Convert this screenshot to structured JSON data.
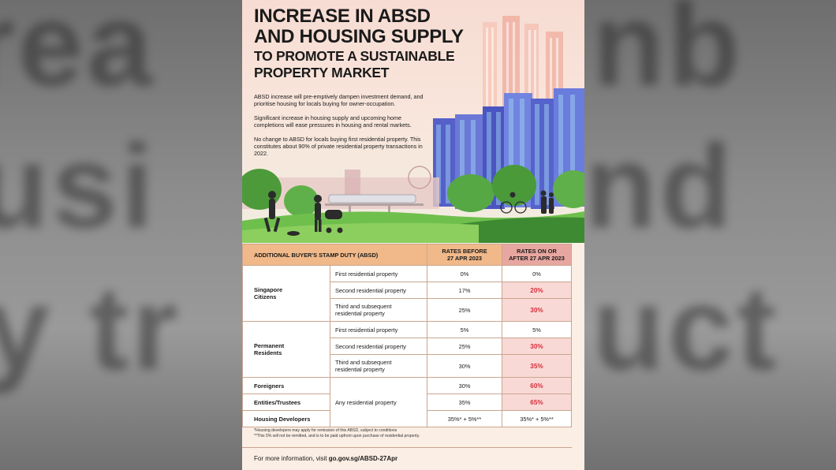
{
  "poster": {
    "title_line1": "INCREASE IN ABSD",
    "title_line2": "AND HOUSING SUPPLY",
    "title_line3": "TO PROMOTE A SUSTAINABLE",
    "title_line4": "PROPERTY MARKET",
    "intro": [
      "ABSD increase will pre-emptively dampen investment demand, and prioritise housing for locals buying for owner-occupation.",
      "Significant increase in housing supply and upcoming home completions will ease pressures in housing and rental markets.",
      "No change to ABSD for locals buying first residential property. This constitutes about 90% of private residential property transactions in 2022."
    ]
  },
  "table": {
    "header_label": "ADDITIONAL BUYER'S STAMP DUTY (ABSD)",
    "header_before_1": "RATES BEFORE",
    "header_before_2": "27 APR 2023",
    "header_after_1": "RATES ON OR",
    "header_after_2": "AFTER 27 APR 2023",
    "citizens": {
      "label_1": "Singapore",
      "label_2": "Citizens",
      "rows": [
        {
          "property": "First residential property",
          "before": "0%",
          "after": "0%"
        },
        {
          "property": "Second residential property",
          "before": "17%",
          "after": "20%"
        },
        {
          "property_1": "Third and subsequent",
          "property_2": "residential property",
          "before": "25%",
          "after": "30%"
        }
      ]
    },
    "pr": {
      "label_1": "Permanent",
      "label_2": "Residents",
      "rows": [
        {
          "property": "First residential property",
          "before": "5%",
          "after": "5%"
        },
        {
          "property": "Second residential property",
          "before": "25%",
          "after": "30%"
        },
        {
          "property_1": "Third and subsequent",
          "property_2": "residential property",
          "before": "30%",
          "after": "35%"
        }
      ]
    },
    "foreigners": {
      "label": "Foreigners",
      "before": "30%",
      "after": "60%"
    },
    "entities": {
      "label": "Entities/Trustees",
      "before": "35%",
      "after": "65%"
    },
    "developers": {
      "label": "Housing Developers",
      "before": "35%* + 5%**",
      "after": "35%* + 5%**"
    },
    "any_property": "Any residential property"
  },
  "footnotes": {
    "line1": "*Housing developers may apply for remission of this ABSD, subject to conditions",
    "line2": "**This 5% will not be remitted, and is to be paid upfront upon purchase of residential property."
  },
  "more_info": {
    "prefix": "For more information, visit ",
    "link": "go.gov.sg/ABSD-27Apr"
  },
  "colors": {
    "header_orange": "#f1b98a",
    "header_pink": "#e8a6a0",
    "highlight_red": "#d62e3a",
    "highlight_bg": "#f9d9d6"
  }
}
